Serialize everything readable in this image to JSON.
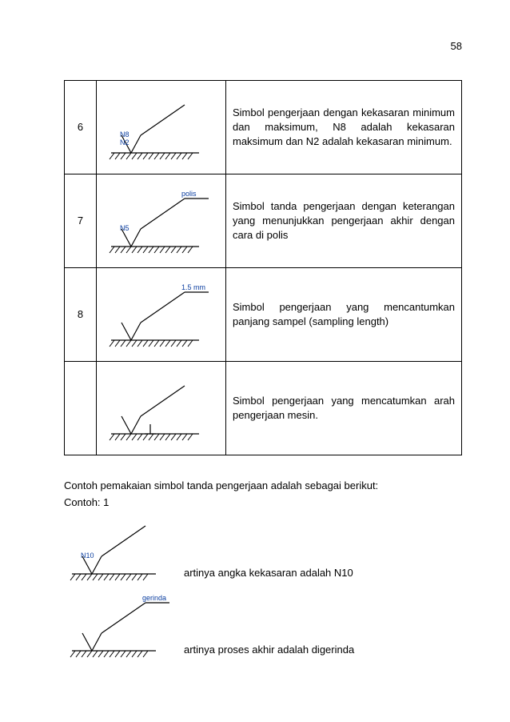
{
  "page_number": "58",
  "table": {
    "border_color": "#000000",
    "rows": [
      {
        "num": "6",
        "desc": "Simbol pengerjaan dengan kekasaran minimum dan maksimum, N8 adalah kekasaran maksimum dan N2 adalah kekasaran minimum.",
        "symbol": {
          "type": "surface",
          "labels_inside": [
            "N8",
            "N2"
          ],
          "label_color": "#0b3ea0",
          "label_top": ""
        }
      },
      {
        "num": "7",
        "desc": "Simbol tanda pengerjaan dengan keterangan yang menunjukkan pengerjaan akhir dengan cara di polis",
        "symbol": {
          "type": "surface",
          "labels_inside": [
            "N5"
          ],
          "label_color": "#0b3ea0",
          "label_top": "polis"
        }
      },
      {
        "num": "8",
        "desc": "Simbol pengerjaan yang mencantumkan panjang sampel (sampling length)",
        "symbol": {
          "type": "surface_baseline",
          "labels_inside": [],
          "label_color": "#0b3ea0",
          "label_top": "1.5  mm"
        }
      },
      {
        "num": "",
        "desc": "Simbol pengerjaan yang mencatumkan arah pengerjaan mesin.",
        "symbol": {
          "type": "surface_perp",
          "labels_inside": [],
          "label_color": "#0b3ea0",
          "label_top": ""
        }
      }
    ]
  },
  "below": {
    "intro": "Contoh pemakaian simbol tanda pengerjaan adalah sebagai berikut:",
    "contoh_label": "Contoh: 1",
    "examples": [
      {
        "symbol": {
          "type": "surface",
          "labels_inside": [
            "N10"
          ],
          "label_color": "#0b3ea0",
          "label_top": ""
        },
        "caption": "artinya angka kekasaran adalah N10"
      },
      {
        "symbol": {
          "type": "surface",
          "labels_inside": [],
          "label_color": "#0b3ea0",
          "label_top": "gerinda"
        },
        "caption": "artinya proses akhir adalah digerinda"
      }
    ]
  },
  "svg_style": {
    "stroke": "#000000",
    "stroke_width": 1.2,
    "hatch_color": "#000000",
    "label_font_size": 9,
    "label_font_family": "Arial"
  }
}
